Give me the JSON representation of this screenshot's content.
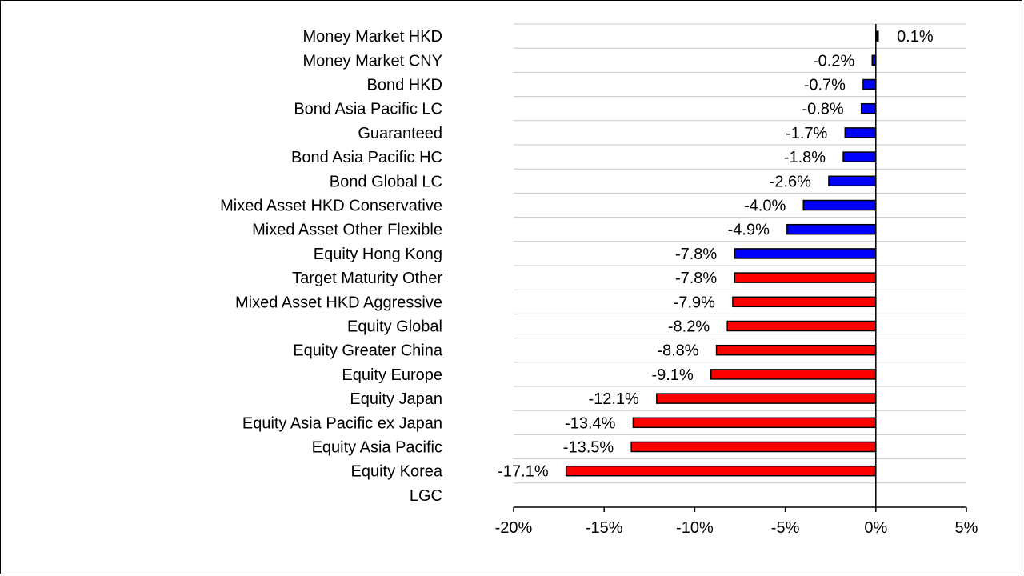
{
  "chart_data": {
    "type": "bar",
    "orientation": "horizontal",
    "categories": [
      "Money Market HKD",
      "Money Market CNY",
      "Bond HKD",
      "Bond Asia Pacific LC",
      "Guaranteed",
      "Bond Asia Pacific HC",
      "Bond Global LC",
      "Mixed Asset HKD Conservative",
      "Mixed Asset Other Flexible",
      "Equity Hong Kong",
      "Target Maturity Other",
      "Mixed Asset HKD Aggressive",
      "Equity Global",
      "Equity Greater China",
      "Equity Europe",
      "Equity Japan",
      "Equity Asia Pacific ex Japan",
      "Equity Asia Pacific",
      "Equity Korea",
      "LGC"
    ],
    "values": [
      0.1,
      -0.2,
      -0.7,
      -0.8,
      -1.7,
      -1.8,
      -2.6,
      -4.0,
      -4.9,
      -7.8,
      -7.8,
      -7.9,
      -8.2,
      -8.8,
      -9.1,
      -12.1,
      -13.4,
      -13.5,
      -17.1,
      null
    ],
    "value_labels": [
      "0.1%",
      "-0.2%",
      "-0.7%",
      "-0.8%",
      "-1.7%",
      "-1.8%",
      "-2.6%",
      "-4.0%",
      "-4.9%",
      "-7.8%",
      "-7.8%",
      "-7.9%",
      "-8.2%",
      "-8.8%",
      "-9.1%",
      "-12.1%",
      "-13.4%",
      "-13.5%",
      "-17.1%",
      ""
    ],
    "bar_colors": [
      "#000000",
      "#0000ff",
      "#0000ff",
      "#0000ff",
      "#0000ff",
      "#0000ff",
      "#0000ff",
      "#0000ff",
      "#0000ff",
      "#0000ff",
      "#ff0000",
      "#ff0000",
      "#ff0000",
      "#ff0000",
      "#ff0000",
      "#ff0000",
      "#ff0000",
      "#ff0000",
      "#ff0000",
      null
    ],
    "xlim": [
      -20,
      5
    ],
    "xticks": [
      -20,
      -15,
      -10,
      -5,
      0,
      5
    ],
    "xtick_labels": [
      "-20%",
      "-15%",
      "-10%",
      "-5%",
      "0%",
      "5%"
    ],
    "grid": "horizontal",
    "title": "",
    "xlabel": "",
    "ylabel": ""
  }
}
